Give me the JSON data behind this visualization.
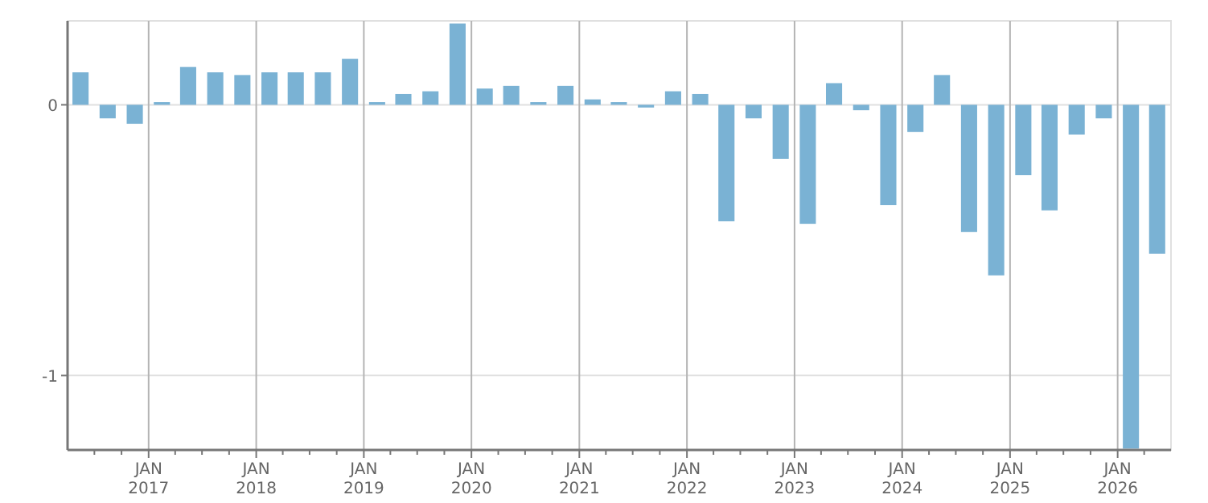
{
  "chart_data": {
    "type": "bar",
    "color": "#7ab2d4",
    "grid": true,
    "x": [
      "2016-05-15",
      "2016-08-15",
      "2016-11-15",
      "2017-02-15",
      "2017-05-15",
      "2017-08-15",
      "2017-11-15",
      "2018-02-15",
      "2018-05-15",
      "2018-08-15",
      "2018-11-15",
      "2019-02-15",
      "2019-05-15",
      "2019-08-15",
      "2019-11-15",
      "2020-02-15",
      "2020-05-15",
      "2020-08-15",
      "2020-11-15",
      "2021-02-15",
      "2021-05-15",
      "2021-08-15",
      "2021-11-15",
      "2022-02-15",
      "2022-05-15",
      "2022-08-15",
      "2022-11-15",
      "2023-02-15",
      "2023-05-15",
      "2023-08-15",
      "2023-11-15",
      "2024-02-15",
      "2024-05-15",
      "2024-08-15",
      "2024-11-15",
      "2025-02-15",
      "2025-05-15",
      "2025-08-15",
      "2025-11-15",
      "2026-02-15",
      "2026-05-15"
    ],
    "values": [
      0.12,
      -0.05,
      -0.07,
      0.01,
      0.14,
      0.12,
      0.11,
      0.12,
      0.12,
      0.12,
      0.17,
      0.01,
      0.04,
      0.05,
      0.3,
      0.06,
      0.07,
      0.01,
      0.07,
      0.02,
      0.01,
      -0.01,
      0.05,
      0.04,
      -0.43,
      -0.05,
      -0.2,
      -0.44,
      0.08,
      -0.02,
      -0.37,
      -0.1,
      0.11,
      -0.47,
      -0.63,
      -0.26,
      -0.39,
      -0.11,
      -0.05,
      -1.27,
      -0.55
    ],
    "xlim": [
      "2016-04-01",
      "2026-07-01"
    ],
    "ylim": [
      -1.275,
      0.31
    ],
    "yticks": [
      0,
      -1
    ],
    "xticks": [
      {
        "value": "2016-07-01",
        "label": null
      },
      {
        "value": "2016-10-01",
        "label": null
      },
      {
        "value": "2017-01-01",
        "label": "JAN\n2017"
      },
      {
        "value": "2017-04-01",
        "label": null
      },
      {
        "value": "2017-07-01",
        "label": null
      },
      {
        "value": "2017-10-01",
        "label": null
      },
      {
        "value": "2018-01-01",
        "label": "JAN\n2018"
      },
      {
        "value": "2018-04-01",
        "label": null
      },
      {
        "value": "2018-07-01",
        "label": null
      },
      {
        "value": "2018-10-01",
        "label": null
      },
      {
        "value": "2019-01-01",
        "label": "JAN\n2019"
      },
      {
        "value": "2019-04-01",
        "label": null
      },
      {
        "value": "2019-07-01",
        "label": null
      },
      {
        "value": "2019-10-01",
        "label": null
      },
      {
        "value": "2020-01-01",
        "label": "JAN\n2020"
      },
      {
        "value": "2020-04-01",
        "label": null
      },
      {
        "value": "2020-07-01",
        "label": null
      },
      {
        "value": "2020-10-01",
        "label": null
      },
      {
        "value": "2021-01-01",
        "label": "JAN\n2021"
      },
      {
        "value": "2021-04-01",
        "label": null
      },
      {
        "value": "2021-07-01",
        "label": null
      },
      {
        "value": "2021-10-01",
        "label": null
      },
      {
        "value": "2022-01-01",
        "label": "JAN\n2022"
      },
      {
        "value": "2022-04-01",
        "label": null
      },
      {
        "value": "2022-07-01",
        "label": null
      },
      {
        "value": "2022-10-01",
        "label": null
      },
      {
        "value": "2023-01-01",
        "label": "JAN\n2023"
      },
      {
        "value": "2023-04-01",
        "label": null
      },
      {
        "value": "2023-07-01",
        "label": null
      },
      {
        "value": "2023-10-01",
        "label": null
      },
      {
        "value": "2024-01-01",
        "label": "JAN\n2024"
      },
      {
        "value": "2024-04-01",
        "label": null
      },
      {
        "value": "2024-07-01",
        "label": null
      },
      {
        "value": "2024-10-01",
        "label": null
      },
      {
        "value": "2025-01-01",
        "label": "JAN\n2025"
      },
      {
        "value": "2025-04-01",
        "label": null
      },
      {
        "value": "2025-07-01",
        "label": null
      },
      {
        "value": "2025-10-01",
        "label": null
      },
      {
        "value": "2026-01-01",
        "label": "JAN\n2026"
      },
      {
        "value": "2026-04-01",
        "label": null
      }
    ]
  }
}
